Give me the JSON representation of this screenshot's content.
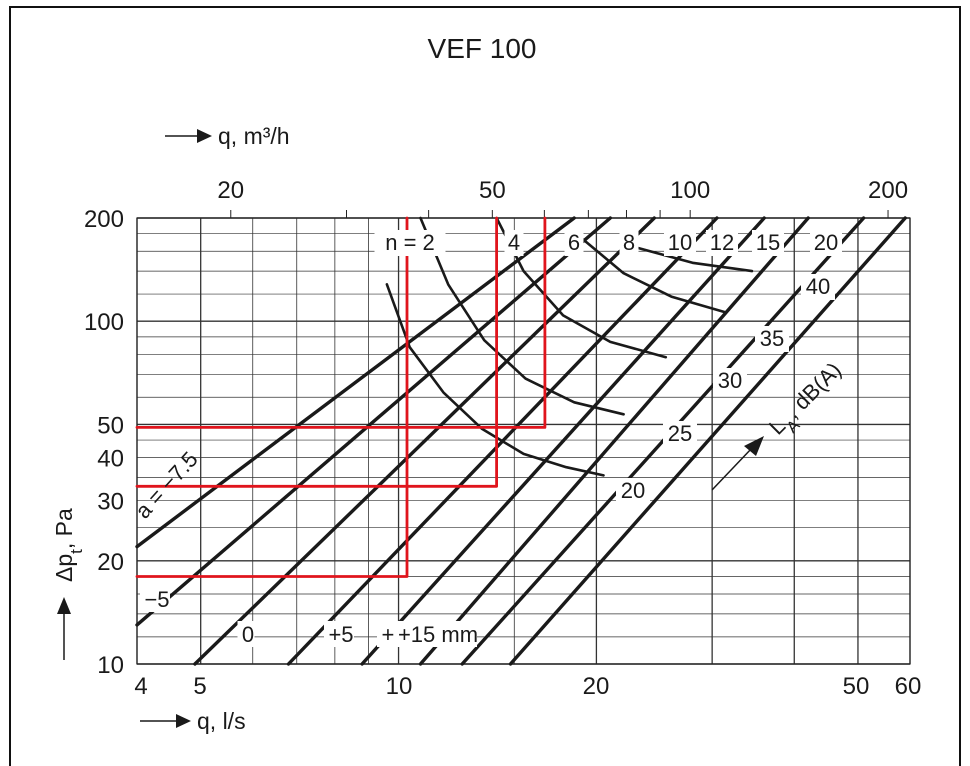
{
  "chart_data": {
    "type": "line",
    "title": "VEF 100",
    "x_scale": "log",
    "y_scale": "log",
    "xlim": [
      4,
      60
    ],
    "ylim": [
      10,
      200
    ],
    "xlabel": "q, l/s",
    "xlabel_top": "q, m³/h",
    "ylabel": "Δp_t, Pa",
    "x_ticks": [
      4,
      5,
      10,
      20,
      50,
      60
    ],
    "x_ticks_top": [
      20,
      50,
      100,
      200
    ],
    "y_ticks": [
      10,
      20,
      30,
      40,
      50,
      100,
      200
    ],
    "grid": true,
    "setting_lines": [
      {
        "label": "a = −7.5",
        "points": [
          [
            4,
            22
          ],
          [
            18.5,
            200
          ]
        ]
      },
      {
        "label": "−5",
        "points": [
          [
            4,
            13
          ],
          [
            21,
            200
          ]
        ]
      },
      {
        "label": "0",
        "points": [
          [
            4.9,
            10
          ],
          [
            24.5,
            200
          ]
        ]
      },
      {
        "label": "+5",
        "points": [
          [
            6.8,
            10
          ],
          [
            30.5,
            200
          ]
        ]
      },
      {
        "label": "+9",
        "points": [
          [
            8.8,
            10
          ],
          [
            36,
            200
          ]
        ]
      },
      {
        "label": "+15 mm",
        "points": [
          [
            10.8,
            10
          ],
          [
            42,
            200
          ]
        ]
      },
      {
        "label": "",
        "points": [
          [
            12.5,
            10
          ],
          [
            51,
            200
          ]
        ]
      },
      {
        "label": "",
        "points": [
          [
            14.8,
            10
          ],
          [
            59,
            200
          ]
        ]
      }
    ],
    "speed_labels": [
      "n = 2",
      "4",
      "6",
      "8",
      "10",
      "12",
      "15",
      "20"
    ],
    "noise_curves": [
      {
        "label": "20",
        "points": [
          [
            9.6,
            128
          ],
          [
            10.4,
            84
          ],
          [
            11.7,
            62
          ],
          [
            13.4,
            48.5
          ],
          [
            15.5,
            41
          ],
          [
            18,
            37.5
          ],
          [
            20.5,
            35.5
          ]
        ]
      },
      {
        "label": "25",
        "points": [
          [
            10.8,
            200
          ],
          [
            11.9,
            128
          ],
          [
            13.5,
            88
          ],
          [
            15.6,
            68
          ],
          [
            18.5,
            58
          ],
          [
            22,
            53.5
          ]
        ]
      },
      {
        "label": "30",
        "points": [
          [
            14.1,
            200
          ],
          [
            15.5,
            140
          ],
          [
            17.8,
            104
          ],
          [
            21,
            87
          ],
          [
            25.5,
            78.5
          ]
        ]
      },
      {
        "label": "35",
        "points": [
          [
            18.5,
            182
          ],
          [
            22,
            138
          ],
          [
            26,
            118
          ],
          [
            31.5,
            106
          ]
        ]
      },
      {
        "label": "40",
        "points": [
          [
            23,
            164
          ],
          [
            28,
            148
          ],
          [
            34.5,
            140
          ]
        ]
      }
    ],
    "noise_label": "L_A, dB(A)",
    "annotations": [
      {
        "color": "#e0141c",
        "points": [
          [
            4,
            18
          ],
          [
            10.3,
            18
          ],
          [
            10.3,
            200
          ]
        ]
      },
      {
        "color": "#e0141c",
        "points": [
          [
            4,
            33
          ],
          [
            14.1,
            33
          ],
          [
            14.1,
            200
          ]
        ]
      },
      {
        "color": "#e0141c",
        "points": [
          [
            4,
            49
          ],
          [
            16.7,
            49
          ],
          [
            16.7,
            200
          ]
        ]
      }
    ]
  }
}
